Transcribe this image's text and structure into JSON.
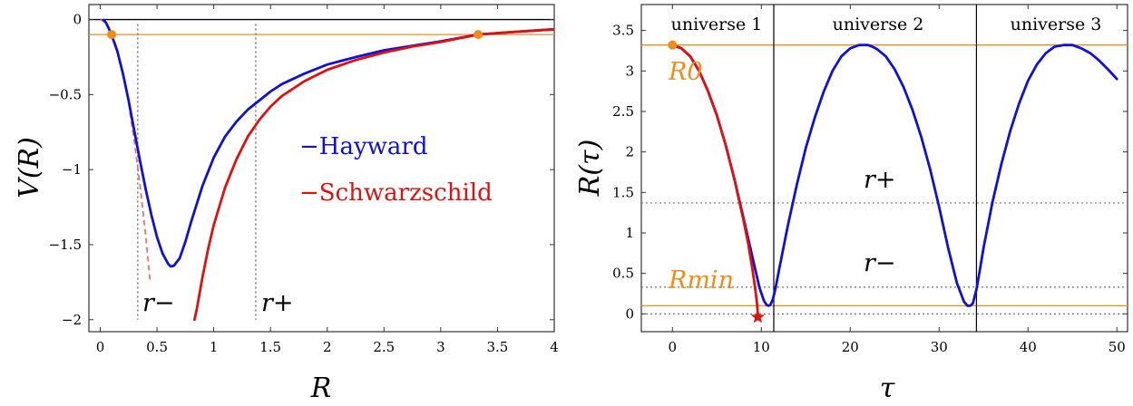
{
  "chart_data": [
    {
      "type": "line",
      "xlabel": "R",
      "ylabel": "V(R)",
      "xlim": [
        -0.1,
        4.0
      ],
      "ylim": [
        -2.08,
        0.1
      ],
      "x_ticks": [
        0,
        0.5,
        1,
        1.5,
        2,
        2.5,
        3,
        3.5,
        4
      ],
      "x_tick_labels": [
        "0",
        "0.5",
        "1",
        "1.5",
        "2",
        "2.5",
        "3",
        "3.5",
        "4"
      ],
      "y_ticks": [
        0,
        -0.5,
        -1,
        -1.5,
        -2
      ],
      "y_tick_labels": [
        "0",
        "−0.5",
        "−1",
        "−1.5",
        "−2"
      ],
      "grid": false,
      "legend_position": "right",
      "series": [
        {
          "name": "Hayward",
          "color": "#1010d8",
          "x": [
            0.03,
            0.05,
            0.08,
            0.1,
            0.15,
            0.2,
            0.25,
            0.3,
            0.35,
            0.4,
            0.45,
            0.5,
            0.55,
            0.6,
            0.62,
            0.65,
            0.7,
            0.75,
            0.8,
            0.9,
            1.0,
            1.1,
            1.2,
            1.3,
            1.4,
            1.5,
            1.6,
            1.8,
            2.0,
            2.25,
            2.5,
            2.75,
            3.0,
            3.33,
            3.6,
            4.0
          ],
          "y": [
            -0.003,
            -0.02,
            -0.067,
            -0.103,
            -0.21,
            -0.36,
            -0.54,
            -0.74,
            -0.94,
            -1.13,
            -1.3,
            -1.45,
            -1.56,
            -1.63,
            -1.645,
            -1.64,
            -1.59,
            -1.48,
            -1.35,
            -1.11,
            -0.92,
            -0.78,
            -0.68,
            -0.6,
            -0.54,
            -0.48,
            -0.43,
            -0.36,
            -0.3,
            -0.25,
            -0.205,
            -0.175,
            -0.145,
            -0.1,
            -0.085,
            -0.065
          ]
        },
        {
          "name": "Schwarzschild",
          "color": "#e01010",
          "x": [
            0.83,
            0.85,
            0.9,
            0.95,
            1.0,
            1.1,
            1.2,
            1.3,
            1.4,
            1.5,
            1.6,
            1.8,
            2.0,
            2.25,
            2.5,
            2.75,
            3.0,
            3.33,
            3.6,
            4.0
          ],
          "y": [
            -2.0,
            -1.93,
            -1.72,
            -1.53,
            -1.37,
            -1.12,
            -0.93,
            -0.78,
            -0.67,
            -0.58,
            -0.51,
            -0.41,
            -0.335,
            -0.27,
            -0.22,
            -0.18,
            -0.15,
            -0.1,
            -0.085,
            -0.065
          ]
        }
      ],
      "dashed_curve": {
        "color": "#f07070",
        "x": [
          0.0,
          0.05,
          0.1,
          0.15,
          0.2,
          0.25,
          0.3,
          0.35,
          0.4,
          0.44
        ],
        "y": [
          0.0,
          -0.022,
          -0.09,
          -0.2,
          -0.36,
          -0.56,
          -0.81,
          -1.1,
          -1.44,
          -1.75
        ]
      },
      "horizontal_lines": [
        {
          "y": 0.0,
          "color": "#000000"
        },
        {
          "y": -0.1,
          "color": "#f08c1a"
        }
      ],
      "vertical_lines": [
        {
          "x": 0.33,
          "label": "r−",
          "style": "dotted",
          "color": "#777777"
        },
        {
          "x": 1.37,
          "label": "r+",
          "style": "dotted",
          "color": "#777777"
        }
      ],
      "points": [
        {
          "x": 0.1,
          "y": -0.1,
          "color": "#f08c1a"
        },
        {
          "x": 3.33,
          "y": -0.1,
          "color": "#f08c1a"
        }
      ],
      "annotation_labels": {
        "r_minus": "r−",
        "r_plus": "r+"
      }
    },
    {
      "type": "line",
      "xlabel": "τ",
      "ylabel": "R(τ)",
      "xlim": [
        -3.5,
        51.2
      ],
      "ylim": [
        -0.22,
        3.82
      ],
      "x_ticks": [
        0,
        10,
        20,
        30,
        40,
        50
      ],
      "x_tick_labels": [
        "0",
        "10",
        "20",
        "30",
        "40",
        "50"
      ],
      "y_ticks": [
        0,
        0.5,
        1,
        1.5,
        2,
        2.5,
        3,
        3.5
      ],
      "y_tick_labels": [
        "0",
        "0.5",
        "1",
        "1.5",
        "2",
        "2.5",
        "3",
        "3.5"
      ],
      "grid": false,
      "series": [
        {
          "name": "Hayward",
          "color": "#1010d8",
          "x": [
            0,
            1,
            2,
            3,
            4,
            5,
            6,
            7,
            8,
            9,
            9.8,
            10.3,
            10.6,
            10.8,
            11.0,
            11.3,
            11.6,
            12,
            13,
            14,
            15,
            16,
            17,
            18,
            19,
            20,
            21,
            22,
            22.5,
            23,
            24,
            25,
            26,
            27,
            28,
            29,
            30,
            31,
            32,
            32.8,
            33.2,
            33.5,
            33.8,
            34.2,
            34.6,
            35,
            36,
            37,
            38,
            39,
            40,
            41,
            42,
            43,
            44,
            45,
            46,
            47,
            48,
            49,
            50
          ],
          "y": [
            3.32,
            3.28,
            3.18,
            3.0,
            2.75,
            2.45,
            2.08,
            1.65,
            1.18,
            0.7,
            0.32,
            0.16,
            0.11,
            0.1,
            0.11,
            0.18,
            0.32,
            0.55,
            1.1,
            1.6,
            2.05,
            2.42,
            2.74,
            3.0,
            3.18,
            3.28,
            3.32,
            3.32,
            3.3,
            3.27,
            3.18,
            3.02,
            2.8,
            2.52,
            2.18,
            1.78,
            1.32,
            0.82,
            0.38,
            0.15,
            0.1,
            0.1,
            0.13,
            0.3,
            0.55,
            0.82,
            1.38,
            1.85,
            2.26,
            2.6,
            2.88,
            3.08,
            3.22,
            3.3,
            3.32,
            3.32,
            3.28,
            3.22,
            3.13,
            3.02,
            2.9
          ]
        },
        {
          "name": "Schwarzschild",
          "color": "#e01010",
          "x": [
            0,
            1,
            2,
            3,
            4,
            5,
            6,
            7,
            8,
            8.5,
            9.0,
            9.3,
            9.5,
            9.6
          ],
          "y": [
            3.32,
            3.28,
            3.18,
            3.0,
            2.75,
            2.45,
            2.08,
            1.65,
            1.15,
            0.88,
            0.55,
            0.32,
            0.14,
            0.0
          ]
        }
      ],
      "horizontal_lines": [
        {
          "y": 3.32,
          "label": "R0",
          "style": "solid",
          "color": "#f08c1a"
        },
        {
          "y": 0.1,
          "label": "Rmin",
          "style": "solid",
          "color": "#f08c1a"
        },
        {
          "y": 1.37,
          "label": "r+",
          "style": "dotted",
          "color": "#777777"
        },
        {
          "y": 0.33,
          "label": "r−",
          "style": "dotted",
          "color": "#777777"
        },
        {
          "y": 0.0,
          "style": "dotted",
          "color": "#777777"
        }
      ],
      "vertical_lines": [
        {
          "x": 11.4,
          "color": "#000000"
        },
        {
          "x": 34.2,
          "color": "#000000"
        }
      ],
      "regions": [
        "universe 1",
        "universe 2",
        "universe 3"
      ],
      "points": [
        {
          "x": 0,
          "y": 3.32,
          "color": "#f08c1a",
          "marker": "circle"
        },
        {
          "x": 9.6,
          "y": -0.04,
          "color": "#e01010",
          "marker": "star"
        }
      ],
      "annotation_labels": {
        "R0": "R0",
        "Rmin": "Rmin",
        "r_plus": "r+",
        "r_minus": "r−"
      }
    }
  ]
}
